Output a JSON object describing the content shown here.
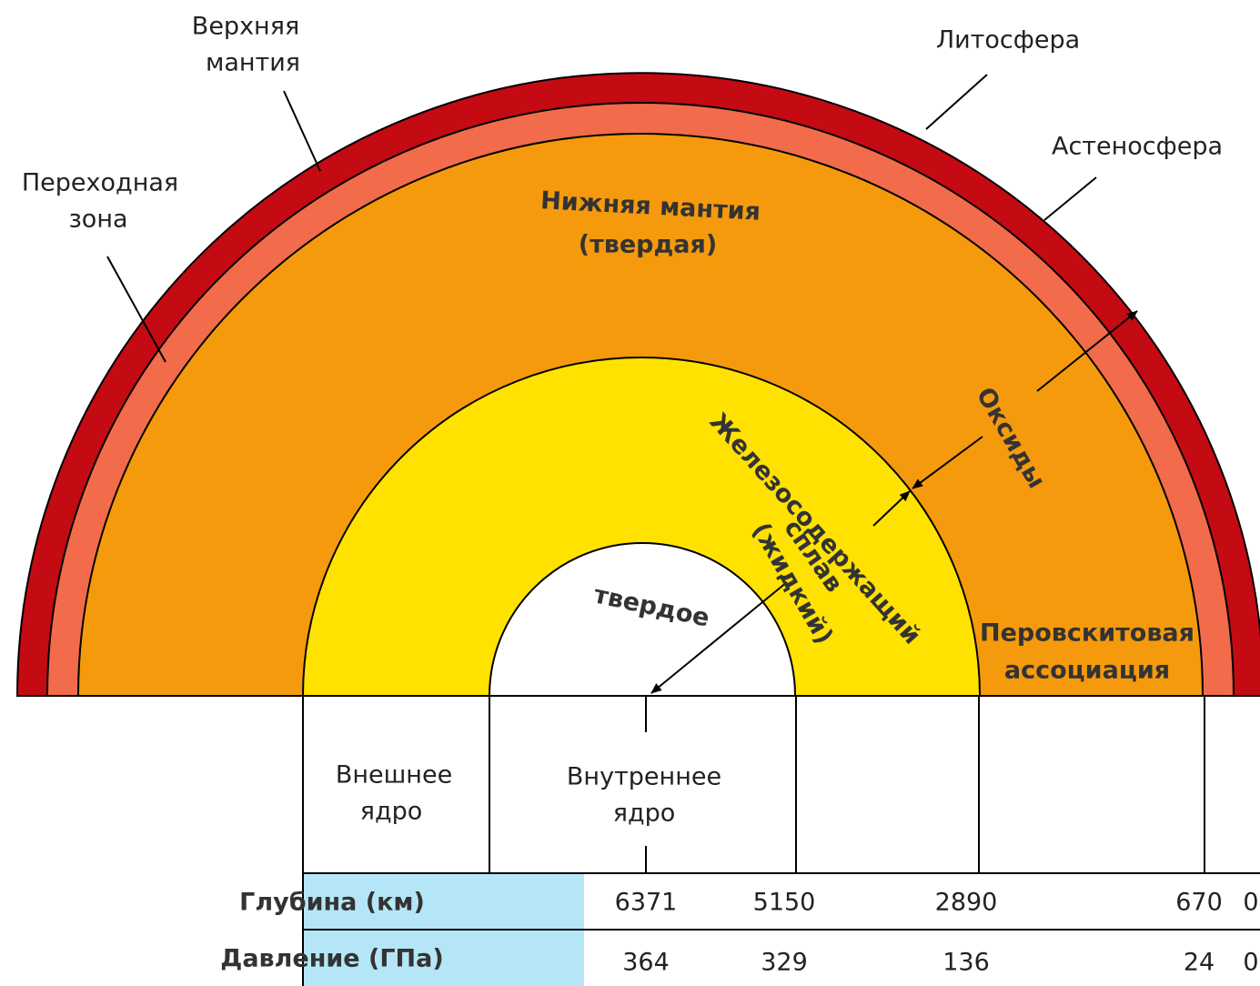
{
  "labels": {
    "upper_mantle": [
      "Верхняя",
      "мантия"
    ],
    "lithosphere": [
      "Литосфера"
    ],
    "asthenosphere": [
      "Астеносфера"
    ],
    "transition_zone": [
      "Переходная",
      "зона"
    ],
    "lower_mantle": [
      "Нижняя мантия",
      "(твердая)"
    ],
    "iron_alloy": [
      "Железосодержащий",
      "сплав",
      "(жидкий)"
    ],
    "oxides": [
      "Оксиды"
    ],
    "solid": [
      "твердое"
    ],
    "perovskite": [
      "Перовскитовая",
      "ассоциация"
    ],
    "outer_core": [
      "Внешнее",
      "ядро"
    ],
    "inner_core": [
      "Внутреннее",
      "ядро"
    ]
  },
  "table": {
    "rows": [
      {
        "header": "Глубина (км)",
        "values": [
          6371,
          5150,
          2890,
          670,
          0
        ]
      },
      {
        "header": "Давление (ГПа)",
        "values": [
          364,
          329,
          136,
          24,
          0
        ]
      }
    ]
  }
}
